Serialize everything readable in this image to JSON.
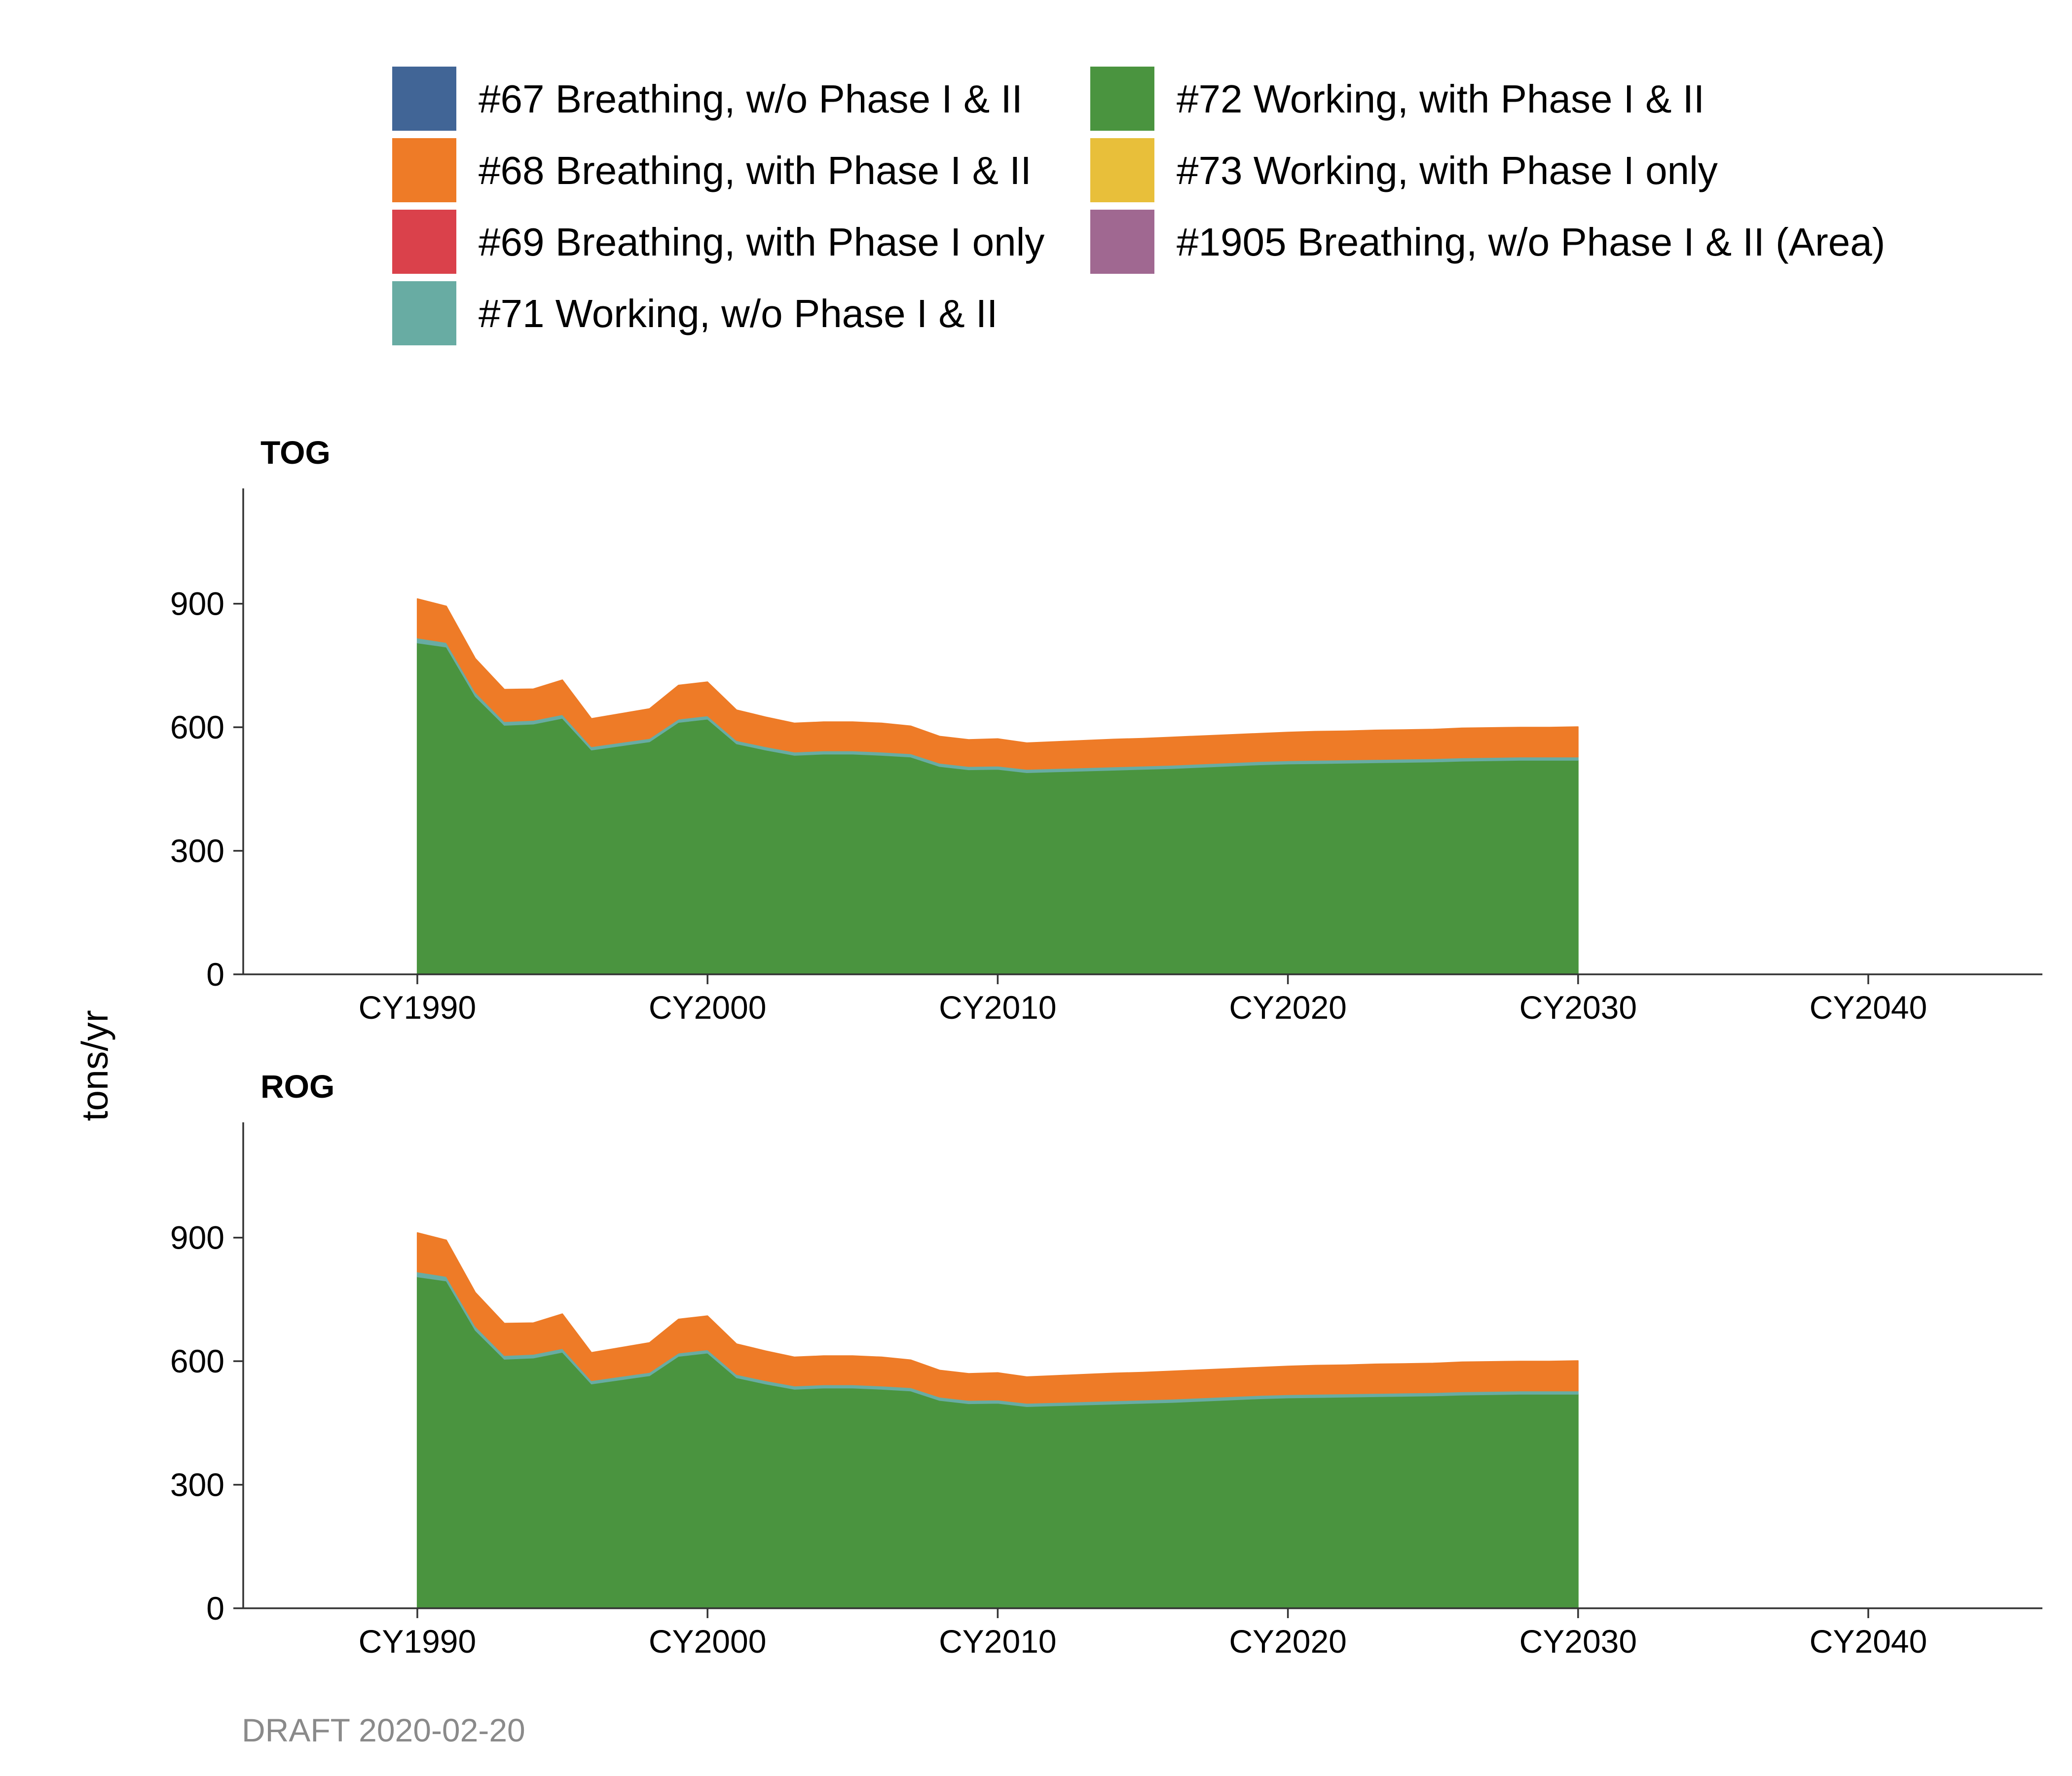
{
  "ylabel": "tons/yr",
  "caption": "DRAFT 2020-02-20",
  "legend": [
    {
      "label": "#67 Breathing, w/o Phase I & II",
      "color": "#416596"
    },
    {
      "label": "#68 Breathing, with Phase I & II",
      "color": "#ee7b27"
    },
    {
      "label": "#69 Breathing, with Phase I only",
      "color": "#da414b"
    },
    {
      "label": "#71 Working, w/o Phase I & II",
      "color": "#68aca3"
    },
    {
      "label": "#72 Working, with Phase I & II",
      "color": "#4a943f"
    },
    {
      "label": "#73 Working, with Phase I only",
      "color": "#e8bf3a"
    },
    {
      "label": "#1905 Breathing, w/o Phase I & II (Area)",
      "color": "#a06891"
    }
  ],
  "chart_data": [
    {
      "type": "area",
      "title": "TOG",
      "xlabel": "",
      "ylabel": "tons/yr",
      "x_ticks": [
        "CY1990",
        "CY2000",
        "CY2010",
        "CY2020",
        "CY2030",
        "CY2040"
      ],
      "y_ticks": [
        "0",
        "300",
        "600",
        "900"
      ],
      "xlim": [
        1984,
        2046
      ],
      "ylim": [
        0,
        1180
      ],
      "stacked": true,
      "x": [
        1990,
        1991,
        1992,
        1993,
        1994,
        1995,
        1996,
        1997,
        1998,
        1999,
        2000,
        2001,
        2002,
        2003,
        2004,
        2005,
        2006,
        2007,
        2008,
        2009,
        2010,
        2011,
        2012,
        2013,
        2014,
        2015,
        2016,
        2017,
        2018,
        2019,
        2020,
        2021,
        2022,
        2023,
        2024,
        2025,
        2026,
        2027,
        2028,
        2029,
        2030
      ],
      "series": [
        {
          "name": "#72 Working, with Phase I & II",
          "color": "#4a943f",
          "values": [
            805,
            795,
            675,
            605,
            608,
            622,
            545,
            555,
            565,
            612,
            620,
            560,
            545,
            532,
            535,
            535,
            532,
            528,
            505,
            497,
            498,
            490,
            492,
            494,
            496,
            498,
            500,
            503,
            506,
            509,
            511,
            512,
            513,
            514,
            515,
            516,
            518,
            519,
            520,
            520,
            520
          ]
        },
        {
          "name": "#71 Working, w/o Phase I & II",
          "color": "#68aca3",
          "values": [
            12,
            11,
            10,
            9,
            9,
            9,
            8,
            8,
            8,
            8,
            8,
            8,
            8,
            8,
            8,
            8,
            8,
            8,
            8,
            8,
            8,
            8,
            8,
            8,
            8,
            8,
            8,
            8,
            8,
            8,
            8,
            8,
            8,
            8,
            8,
            8,
            8,
            8,
            8,
            8,
            8
          ]
        },
        {
          "name": "#68 Breathing, with Phase I & II",
          "color": "#ee7b27",
          "values": [
            95,
            88,
            82,
            78,
            76,
            84,
            68,
            70,
            72,
            82,
            82,
            74,
            72,
            70,
            70,
            70,
            70,
            67,
            65,
            65,
            66,
            64,
            65,
            66,
            67,
            67,
            68,
            68,
            68,
            68,
            69,
            70,
            70,
            71,
            71,
            71,
            72,
            72,
            72,
            72,
            73
          ]
        }
      ]
    },
    {
      "type": "area",
      "title": "ROG",
      "xlabel": "",
      "ylabel": "tons/yr",
      "x_ticks": [
        "CY1990",
        "CY2000",
        "CY2010",
        "CY2020",
        "CY2030",
        "CY2040"
      ],
      "y_ticks": [
        "0",
        "300",
        "600",
        "900"
      ],
      "xlim": [
        1984,
        2046
      ],
      "ylim": [
        0,
        1180
      ],
      "stacked": true,
      "x": [
        1990,
        1991,
        1992,
        1993,
        1994,
        1995,
        1996,
        1997,
        1998,
        1999,
        2000,
        2001,
        2002,
        2003,
        2004,
        2005,
        2006,
        2007,
        2008,
        2009,
        2010,
        2011,
        2012,
        2013,
        2014,
        2015,
        2016,
        2017,
        2018,
        2019,
        2020,
        2021,
        2022,
        2023,
        2024,
        2025,
        2026,
        2027,
        2028,
        2029,
        2030
      ],
      "series": [
        {
          "name": "#72 Working, with Phase I & II",
          "color": "#4a943f",
          "values": [
            805,
            795,
            675,
            605,
            608,
            622,
            545,
            555,
            565,
            612,
            620,
            560,
            545,
            532,
            535,
            535,
            532,
            528,
            505,
            497,
            498,
            490,
            492,
            494,
            496,
            498,
            500,
            503,
            506,
            509,
            511,
            512,
            513,
            514,
            515,
            516,
            518,
            519,
            520,
            520,
            520
          ]
        },
        {
          "name": "#71 Working, w/o Phase I & II",
          "color": "#68aca3",
          "values": [
            12,
            11,
            10,
            9,
            9,
            9,
            8,
            8,
            8,
            8,
            8,
            8,
            8,
            8,
            8,
            8,
            8,
            8,
            8,
            8,
            8,
            8,
            8,
            8,
            8,
            8,
            8,
            8,
            8,
            8,
            8,
            8,
            8,
            8,
            8,
            8,
            8,
            8,
            8,
            8,
            8
          ]
        },
        {
          "name": "#68 Breathing, with Phase I & II",
          "color": "#ee7b27",
          "values": [
            95,
            88,
            82,
            78,
            76,
            84,
            68,
            70,
            72,
            82,
            82,
            74,
            72,
            70,
            70,
            70,
            70,
            67,
            65,
            65,
            66,
            64,
            65,
            66,
            67,
            67,
            68,
            68,
            68,
            68,
            69,
            70,
            70,
            71,
            71,
            71,
            72,
            72,
            72,
            72,
            73
          ]
        }
      ]
    }
  ]
}
